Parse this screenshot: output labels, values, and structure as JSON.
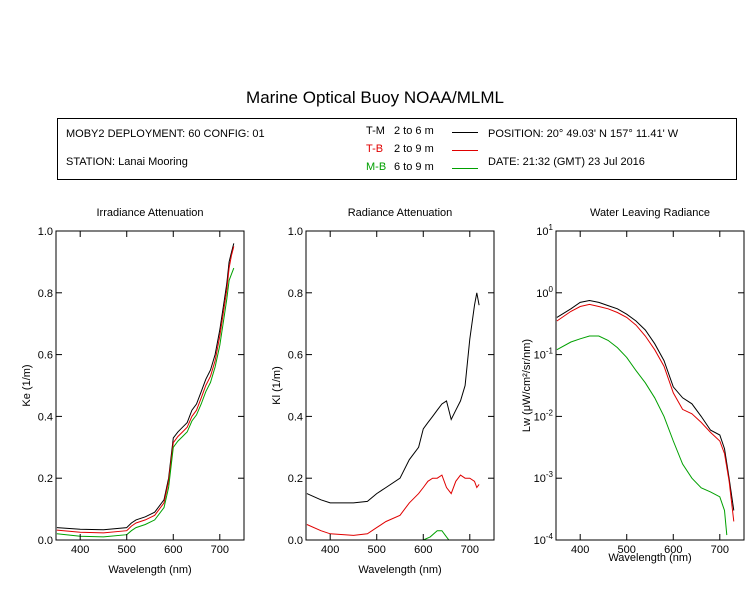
{
  "title": "Marine Optical Buoy NOAA/MLML",
  "header": {
    "deployment": "MOBY2 DEPLOYMENT: 60 CONFIG: 01",
    "station": "STATION: Lanai Mooring",
    "position": "POSITION: 20° 49.03' N   157° 11.41' W",
    "date": "DATE: 21:32 (GMT) 23 Jul 2016"
  },
  "legend": [
    {
      "code": "T-M",
      "range": "2 to 6  m",
      "color": "#000000"
    },
    {
      "code": "T-B",
      "range": "2 to 9  m",
      "color": "#e00000"
    },
    {
      "code": "M-B",
      "range": "6 to 9  m",
      "color": "#00a000"
    }
  ],
  "chart_data": [
    {
      "type": "line",
      "title": "Irradiance Attenuation",
      "xlabel": "Wavelength (nm)",
      "ylabel": "Ke  (1/m)",
      "xlim": [
        348,
        752
      ],
      "ylim": [
        0,
        1.0
      ],
      "xticks": [
        400,
        500,
        600,
        700
      ],
      "yticks": [
        0.0,
        0.2,
        0.4,
        0.6,
        0.8,
        1.0
      ],
      "ytick_labels": [
        "0.0",
        "0.2",
        "0.4",
        "0.6",
        "0.8",
        "1.0"
      ],
      "grid": false,
      "series": [
        {
          "name": "T-M",
          "color": "#000000",
          "x": [
            350,
            400,
            450,
            500,
            510,
            520,
            540,
            560,
            580,
            590,
            600,
            610,
            620,
            630,
            640,
            650,
            660,
            670,
            680,
            690,
            700,
            710,
            715,
            720,
            725,
            730
          ],
          "y": [
            0.04,
            0.035,
            0.033,
            0.04,
            0.055,
            0.065,
            0.075,
            0.09,
            0.13,
            0.2,
            0.33,
            0.35,
            0.365,
            0.38,
            0.42,
            0.44,
            0.48,
            0.52,
            0.55,
            0.6,
            0.68,
            0.78,
            0.83,
            0.9,
            0.93,
            0.96
          ]
        },
        {
          "name": "T-B",
          "color": "#e00000",
          "x": [
            350,
            400,
            450,
            500,
            510,
            520,
            540,
            560,
            580,
            590,
            600,
            610,
            620,
            630,
            640,
            650,
            660,
            670,
            680,
            690,
            700,
            710,
            715,
            720,
            725,
            730
          ],
          "y": [
            0.032,
            0.025,
            0.023,
            0.03,
            0.045,
            0.055,
            0.065,
            0.08,
            0.12,
            0.19,
            0.315,
            0.335,
            0.35,
            0.365,
            0.4,
            0.42,
            0.46,
            0.5,
            0.53,
            0.58,
            0.66,
            0.76,
            0.81,
            0.88,
            0.92,
            0.95
          ]
        },
        {
          "name": "M-B",
          "color": "#00a000",
          "x": [
            350,
            400,
            450,
            500,
            510,
            520,
            540,
            560,
            580,
            590,
            600,
            610,
            620,
            630,
            640,
            650,
            660,
            670,
            680,
            690,
            700,
            710,
            715,
            720,
            725,
            730
          ],
          "y": [
            0.02,
            0.012,
            0.01,
            0.017,
            0.03,
            0.04,
            0.05,
            0.065,
            0.105,
            0.17,
            0.3,
            0.32,
            0.335,
            0.35,
            0.385,
            0.405,
            0.44,
            0.48,
            0.51,
            0.56,
            0.63,
            0.73,
            0.78,
            0.84,
            0.86,
            0.88
          ]
        }
      ]
    },
    {
      "type": "line",
      "title": "Radiance Attenuation",
      "xlabel": "Wavelength (nm)",
      "ylabel": "Kl  (1/m)",
      "xlim": [
        348,
        752
      ],
      "ylim": [
        0,
        1.0
      ],
      "xticks": [
        400,
        500,
        600,
        700
      ],
      "yticks": [
        0.0,
        0.2,
        0.4,
        0.6,
        0.8,
        1.0
      ],
      "ytick_labels": [
        "0.0",
        "0.2",
        "0.4",
        "0.6",
        "0.8",
        "1.0"
      ],
      "grid": false,
      "series": [
        {
          "name": "T-M",
          "color": "#000000",
          "x": [
            350,
            380,
            400,
            450,
            480,
            500,
            520,
            550,
            570,
            590,
            600,
            610,
            620,
            630,
            640,
            650,
            660,
            670,
            680,
            690,
            700,
            710,
            715,
            720
          ],
          "y": [
            0.15,
            0.13,
            0.12,
            0.12,
            0.125,
            0.15,
            0.17,
            0.2,
            0.26,
            0.3,
            0.36,
            0.38,
            0.4,
            0.42,
            0.44,
            0.45,
            0.39,
            0.42,
            0.45,
            0.5,
            0.65,
            0.76,
            0.8,
            0.76
          ]
        },
        {
          "name": "T-B",
          "color": "#e00000",
          "x": [
            350,
            380,
            400,
            450,
            480,
            500,
            520,
            550,
            570,
            590,
            600,
            610,
            620,
            630,
            640,
            650,
            660,
            670,
            680,
            690,
            700,
            710,
            715,
            720
          ],
          "y": [
            0.05,
            0.03,
            0.02,
            0.015,
            0.02,
            0.04,
            0.06,
            0.08,
            0.12,
            0.15,
            0.17,
            0.19,
            0.2,
            0.2,
            0.21,
            0.17,
            0.15,
            0.19,
            0.21,
            0.2,
            0.2,
            0.19,
            0.17,
            0.18
          ]
        },
        {
          "name": "M-B",
          "color": "#00a000",
          "x": [
            600,
            615,
            630,
            640,
            650,
            655
          ],
          "y": [
            0.0,
            0.01,
            0.03,
            0.03,
            0.01,
            0.0
          ]
        }
      ]
    },
    {
      "type": "line",
      "title": "Water Leaving Radiance",
      "xlabel": "Wavelength (nm)",
      "ylabel": "Lw  (μW/cm²/sr/nm)",
      "xlim": [
        348,
        752
      ],
      "ylim": [
        0.0001,
        10
      ],
      "yscale": "log",
      "xticks": [
        400,
        500,
        600,
        700
      ],
      "yticks": [
        0.0001,
        0.001,
        0.01,
        0.1,
        1,
        10
      ],
      "ytick_labels": [
        {
          "base": "10",
          "exp": "-4"
        },
        {
          "base": "10",
          "exp": "-3"
        },
        {
          "base": "10",
          "exp": "-2"
        },
        {
          "base": "10",
          "exp": "-1"
        },
        {
          "base": "10",
          "exp": "0"
        },
        {
          "base": "10",
          "exp": "1"
        }
      ],
      "grid": false,
      "series": [
        {
          "name": "T-M",
          "color": "#000000",
          "x": [
            350,
            380,
            400,
            420,
            440,
            460,
            480,
            500,
            520,
            540,
            560,
            580,
            600,
            620,
            640,
            660,
            680,
            700,
            710,
            720,
            730
          ],
          "y": [
            0.4,
            0.55,
            0.7,
            0.75,
            0.7,
            0.62,
            0.55,
            0.45,
            0.35,
            0.25,
            0.15,
            0.08,
            0.03,
            0.02,
            0.016,
            0.01,
            0.006,
            0.005,
            0.003,
            0.001,
            0.0003
          ]
        },
        {
          "name": "T-B",
          "color": "#e00000",
          "x": [
            350,
            380,
            400,
            420,
            440,
            460,
            480,
            500,
            520,
            540,
            560,
            580,
            600,
            620,
            640,
            660,
            680,
            700,
            710,
            720,
            730
          ],
          "y": [
            0.35,
            0.5,
            0.6,
            0.65,
            0.6,
            0.55,
            0.48,
            0.4,
            0.3,
            0.2,
            0.12,
            0.065,
            0.024,
            0.013,
            0.011,
            0.008,
            0.0055,
            0.004,
            0.0025,
            0.0009,
            0.0002
          ]
        },
        {
          "name": "M-B",
          "color": "#00a000",
          "x": [
            350,
            380,
            400,
            420,
            440,
            460,
            480,
            500,
            520,
            540,
            560,
            580,
            600,
            620,
            640,
            660,
            680,
            700,
            710,
            715
          ],
          "y": [
            0.12,
            0.16,
            0.18,
            0.2,
            0.2,
            0.17,
            0.13,
            0.09,
            0.055,
            0.035,
            0.02,
            0.01,
            0.004,
            0.0017,
            0.001,
            0.0007,
            0.0006,
            0.0005,
            0.0003,
            0.00012
          ]
        }
      ]
    }
  ]
}
